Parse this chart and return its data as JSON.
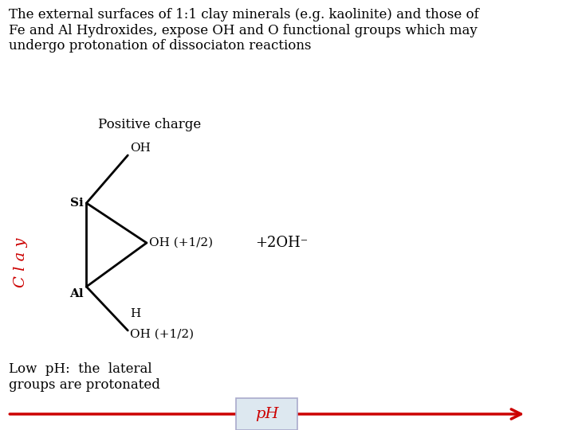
{
  "background_color": "#ffffff",
  "title_text": "The external surfaces of 1:1 clay minerals (e.g. kaolinite) and those of\nFe and Al Hydroxides, expose OH and O functional groups which may\nundergo protonation of dissociaton reactions",
  "title_fontsize": 12,
  "positive_charge_label": "Positive charge",
  "clay_label": "C l a y",
  "clay_color": "#cc0000",
  "oh_plus2_label": "+2OH⁻",
  "low_ph_text": "Low  pH:  the  lateral\ngroups are protonated",
  "ph_label": "pH",
  "ph_label_color": "#cc0000",
  "arrow_color": "#cc0000",
  "line_color": "#000000",
  "si_label": "Si",
  "al_label": "Al",
  "oh_upper": "OH",
  "oh_mid": "OH (+1/2)",
  "h_label": "H",
  "oh_lower": "OH (+1/2)"
}
